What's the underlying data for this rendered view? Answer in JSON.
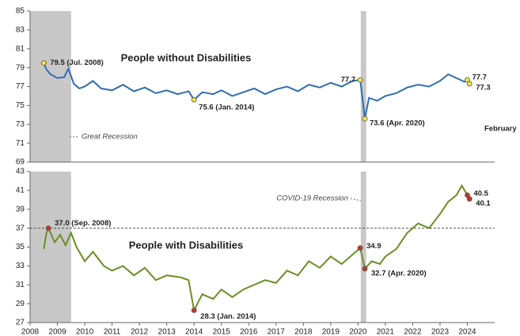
{
  "recessions": [
    {
      "name": "Great Recession",
      "start": 2008.0,
      "end": 2009.5
    },
    {
      "name": "COVID-19 Recession",
      "start": 2020.1,
      "end": 2020.3
    }
  ],
  "chart_data": [
    {
      "type": "line",
      "title": "People without Disabilities",
      "note": "February",
      "color": "#2e6db4",
      "x": [
        2008.5,
        2008.6,
        2008.75,
        2009.0,
        2009.25,
        2009.4,
        2009.6,
        2009.8,
        2010.0,
        2010.3,
        2010.6,
        2011.0,
        2011.4,
        2011.8,
        2012.2,
        2012.6,
        2013.0,
        2013.4,
        2013.8,
        2014.0,
        2014.3,
        2014.7,
        2015.0,
        2015.4,
        2015.8,
        2016.2,
        2016.6,
        2017.0,
        2017.4,
        2017.8,
        2018.2,
        2018.6,
        2019.0,
        2019.4,
        2019.8,
        2020.08,
        2020.25,
        2020.4,
        2020.7,
        2021.0,
        2021.4,
        2021.8,
        2022.2,
        2022.6,
        2023.0,
        2023.3,
        2023.6,
        2023.9,
        2024.0,
        2024.08
      ],
      "values": [
        79.5,
        78.8,
        78.3,
        77.9,
        78.0,
        78.9,
        77.3,
        76.8,
        77.0,
        77.6,
        76.8,
        76.6,
        77.2,
        76.5,
        76.9,
        76.3,
        76.6,
        76.2,
        76.5,
        75.6,
        76.4,
        76.2,
        76.6,
        76.0,
        76.4,
        76.8,
        76.2,
        76.7,
        77.0,
        76.5,
        77.2,
        76.9,
        77.4,
        77.0,
        77.6,
        77.7,
        73.6,
        75.8,
        75.5,
        76.0,
        76.3,
        76.9,
        77.2,
        77.0,
        77.6,
        78.3,
        77.9,
        77.5,
        77.7,
        77.3
      ],
      "annotations": [
        {
          "x": 2008.5,
          "y": 79.5,
          "label": "79.5 (Jul. 2008)"
        },
        {
          "x": 2014.0,
          "y": 75.6,
          "label": "75.6 (Jan. 2014)"
        },
        {
          "x": 2020.08,
          "y": 77.7,
          "label": "77.7"
        },
        {
          "x": 2020.25,
          "y": 73.6,
          "label": "73.6 (Apr. 2020)"
        },
        {
          "x": 2024.0,
          "y": 77.7,
          "label": "77.7"
        },
        {
          "x": 2024.08,
          "y": 77.3,
          "label": "77.3"
        }
      ],
      "marker_color": "#f5e642",
      "xlim": [
        2008,
        2025
      ],
      "ylim": [
        69,
        85
      ],
      "yticks": [
        69,
        71,
        73,
        75,
        77,
        79,
        81,
        83,
        85
      ]
    },
    {
      "type": "line",
      "title": "People with Disabilities",
      "color": "#6b8e23",
      "x": [
        2008.5,
        2008.6,
        2008.67,
        2008.9,
        2009.1,
        2009.3,
        2009.5,
        2009.7,
        2010.0,
        2010.3,
        2010.7,
        2011.0,
        2011.4,
        2011.8,
        2012.2,
        2012.6,
        2013.0,
        2013.5,
        2013.8,
        2014.0,
        2014.3,
        2014.7,
        2015.0,
        2015.4,
        2015.8,
        2016.2,
        2016.6,
        2017.0,
        2017.4,
        2017.8,
        2018.2,
        2018.6,
        2019.0,
        2019.4,
        2019.8,
        2020.08,
        2020.25,
        2020.5,
        2020.8,
        2021.0,
        2021.4,
        2021.8,
        2022.2,
        2022.6,
        2023.0,
        2023.3,
        2023.6,
        2023.8,
        2024.0,
        2024.08
      ],
      "values": [
        34.8,
        36.5,
        37.0,
        35.5,
        36.3,
        35.2,
        36.5,
        35.0,
        33.5,
        34.5,
        33.0,
        32.5,
        33.0,
        32.0,
        32.8,
        31.5,
        32.0,
        31.8,
        31.5,
        28.3,
        30.0,
        29.5,
        30.5,
        29.7,
        30.5,
        31.0,
        31.5,
        31.2,
        32.5,
        32.0,
        33.5,
        32.8,
        34.0,
        33.2,
        34.2,
        34.9,
        32.7,
        33.5,
        33.2,
        34.0,
        34.8,
        36.5,
        37.5,
        37.0,
        38.5,
        39.8,
        40.5,
        41.5,
        40.5,
        40.1
      ],
      "annotations": [
        {
          "x": 2008.67,
          "y": 37.0,
          "label": "37.0 (Sep. 2008)"
        },
        {
          "x": 2014.0,
          "y": 28.3,
          "label": "28.3 (Jan. 2014)"
        },
        {
          "x": 2020.08,
          "y": 34.9,
          "label": "34.9"
        },
        {
          "x": 2020.25,
          "y": 32.7,
          "label": "32.7 (Apr. 2020)"
        },
        {
          "x": 2024.0,
          "y": 40.5,
          "label": "40.5"
        },
        {
          "x": 2024.08,
          "y": 40.1,
          "label": "40.1"
        }
      ],
      "marker_color": "#c0392b",
      "reference_line": 37.0,
      "xlim": [
        2008,
        2025
      ],
      "ylim": [
        27,
        43
      ],
      "yticks": [
        27,
        29,
        31,
        33,
        35,
        37,
        39,
        41,
        43
      ],
      "xticks": [
        2008,
        2009,
        2010,
        2011,
        2012,
        2013,
        2014,
        2015,
        2016,
        2017,
        2018,
        2019,
        2020,
        2021,
        2022,
        2023,
        2024
      ]
    }
  ]
}
